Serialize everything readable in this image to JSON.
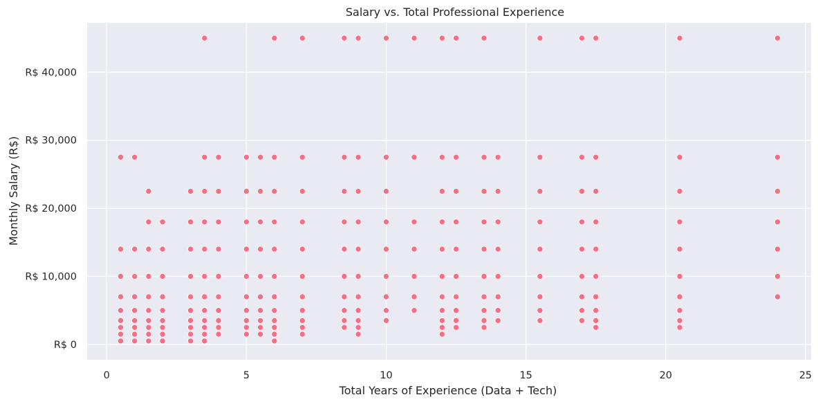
{
  "chart_data": {
    "type": "scatter",
    "title": "Salary vs. Total Professional Experience",
    "xlabel": "Total Years of Experience (Data + Tech)",
    "ylabel": "Monthly Salary (R$)",
    "xlim": [
      -0.7,
      25.2
    ],
    "ylim": [
      -2250,
      47250
    ],
    "x_ticks": [
      0,
      5,
      10,
      15,
      20,
      25
    ],
    "x_tick_labels": [
      "0",
      "5",
      "10",
      "15",
      "20",
      "25"
    ],
    "y_ticks": [
      0,
      10000,
      20000,
      30000,
      40000
    ],
    "y_tick_labels": [
      "R$ 0",
      "R$ 10,000",
      "R$ 20,000",
      "R$ 30,000",
      "R$ 40,000"
    ],
    "grid": true,
    "background": "#eaeaf2",
    "grid_color": "#ffffff",
    "point_color": "#f2637a",
    "salary_levels": [
      500,
      1500,
      2500,
      3500,
      5000,
      7000,
      10000,
      14000,
      18000,
      22500,
      27500,
      45000
    ],
    "x_values": [
      0.5,
      1,
      1.5,
      2,
      3,
      3.5,
      4,
      5,
      5.5,
      6,
      7,
      8.5,
      9,
      10,
      11,
      12,
      12.5,
      13.5,
      14,
      15.5,
      17,
      17.5,
      20.5,
      24
    ],
    "columns": [
      {
        "x": 0.5,
        "y": [
          500,
          1500,
          2500,
          3500,
          5000,
          7000,
          10000,
          14000,
          27500
        ]
      },
      {
        "x": 1,
        "y": [
          500,
          1500,
          2500,
          3500,
          5000,
          7000,
          10000,
          14000,
          27500
        ]
      },
      {
        "x": 1.5,
        "y": [
          500,
          1500,
          2500,
          3500,
          5000,
          7000,
          10000,
          14000,
          18000,
          22500
        ]
      },
      {
        "x": 2,
        "y": [
          500,
          1500,
          2500,
          3500,
          5000,
          7000,
          10000,
          14000,
          18000
        ]
      },
      {
        "x": 3,
        "y": [
          500,
          1500,
          2500,
          3500,
          5000,
          7000,
          10000,
          14000,
          18000,
          22500
        ]
      },
      {
        "x": 3.5,
        "y": [
          500,
          1500,
          2500,
          3500,
          5000,
          7000,
          10000,
          14000,
          18000,
          22500,
          27500,
          45000
        ]
      },
      {
        "x": 4,
        "y": [
          1500,
          2500,
          3500,
          5000,
          7000,
          10000,
          14000,
          18000,
          22500,
          27500
        ]
      },
      {
        "x": 5,
        "y": [
          1500,
          2500,
          3500,
          5000,
          7000,
          10000,
          14000,
          18000,
          22500,
          27500
        ]
      },
      {
        "x": 5.5,
        "y": [
          1500,
          2500,
          3500,
          5000,
          7000,
          10000,
          14000,
          18000,
          22500,
          27500
        ]
      },
      {
        "x": 6,
        "y": [
          500,
          1500,
          2500,
          3500,
          5000,
          7000,
          10000,
          14000,
          18000,
          22500,
          27500,
          45000
        ]
      },
      {
        "x": 7,
        "y": [
          1500,
          2500,
          3500,
          5000,
          7000,
          10000,
          14000,
          18000,
          22500,
          27500,
          45000
        ]
      },
      {
        "x": 8.5,
        "y": [
          2500,
          3500,
          5000,
          7000,
          10000,
          14000,
          18000,
          22500,
          27500,
          45000
        ]
      },
      {
        "x": 9,
        "y": [
          1500,
          2500,
          3500,
          5000,
          7000,
          10000,
          14000,
          18000,
          22500,
          27500,
          45000
        ]
      },
      {
        "x": 10,
        "y": [
          3500,
          5000,
          7000,
          10000,
          14000,
          18000,
          22500,
          27500,
          45000
        ]
      },
      {
        "x": 11,
        "y": [
          5000,
          7000,
          10000,
          14000,
          18000,
          27500,
          45000
        ]
      },
      {
        "x": 12,
        "y": [
          1500,
          2500,
          3500,
          5000,
          7000,
          10000,
          14000,
          18000,
          22500,
          27500,
          45000
        ]
      },
      {
        "x": 12.5,
        "y": [
          2500,
          3500,
          5000,
          7000,
          10000,
          14000,
          18000,
          22500,
          27500,
          45000
        ]
      },
      {
        "x": 13.5,
        "y": [
          2500,
          3500,
          5000,
          7000,
          10000,
          14000,
          18000,
          22500,
          27500,
          45000
        ]
      },
      {
        "x": 14,
        "y": [
          3500,
          5000,
          7000,
          10000,
          14000,
          18000,
          22500,
          27500
        ]
      },
      {
        "x": 15.5,
        "y": [
          3500,
          5000,
          7000,
          10000,
          14000,
          18000,
          22500,
          27500,
          45000
        ]
      },
      {
        "x": 17,
        "y": [
          3500,
          5000,
          7000,
          10000,
          14000,
          18000,
          22500,
          27500,
          45000
        ]
      },
      {
        "x": 17.5,
        "y": [
          2500,
          3500,
          5000,
          7000,
          10000,
          14000,
          18000,
          22500,
          27500,
          45000
        ]
      },
      {
        "x": 20.5,
        "y": [
          2500,
          3500,
          5000,
          7000,
          10000,
          14000,
          18000,
          22500,
          27500,
          45000
        ]
      },
      {
        "x": 24,
        "y": [
          7000,
          10000,
          14000,
          18000,
          22500,
          27500,
          45000
        ]
      }
    ]
  }
}
